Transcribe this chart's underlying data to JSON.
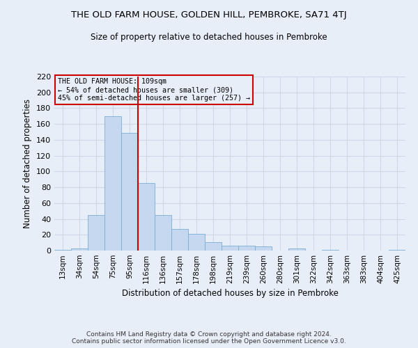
{
  "title": "THE OLD FARM HOUSE, GOLDEN HILL, PEMBROKE, SA71 4TJ",
  "subtitle": "Size of property relative to detached houses in Pembroke",
  "xlabel": "Distribution of detached houses by size in Pembroke",
  "ylabel": "Number of detached properties",
  "footer_line1": "Contains HM Land Registry data © Crown copyright and database right 2024.",
  "footer_line2": "Contains public sector information licensed under the Open Government Licence v3.0.",
  "categories": [
    "13sqm",
    "34sqm",
    "54sqm",
    "75sqm",
    "95sqm",
    "116sqm",
    "136sqm",
    "157sqm",
    "178sqm",
    "198sqm",
    "219sqm",
    "239sqm",
    "260sqm",
    "280sqm",
    "301sqm",
    "322sqm",
    "342sqm",
    "363sqm",
    "383sqm",
    "404sqm",
    "425sqm"
  ],
  "values": [
    1,
    3,
    45,
    170,
    149,
    85,
    45,
    27,
    21,
    11,
    6,
    6,
    5,
    0,
    3,
    0,
    1,
    0,
    0,
    0,
    1
  ],
  "bar_color": "#c5d8f0",
  "bar_edge_color": "#7aadd4",
  "grid_color": "#d0d8e8",
  "background_color": "#e8eef8",
  "vline_x": 4.5,
  "vline_color": "#cc0000",
  "annotation_text": "THE OLD FARM HOUSE: 109sqm\n← 54% of detached houses are smaller (309)\n45% of semi-detached houses are larger (257) →",
  "annotation_box_color": "#cc0000",
  "ylim": [
    0,
    220
  ],
  "yticks": [
    0,
    20,
    40,
    60,
    80,
    100,
    120,
    140,
    160,
    180,
    200,
    220
  ]
}
